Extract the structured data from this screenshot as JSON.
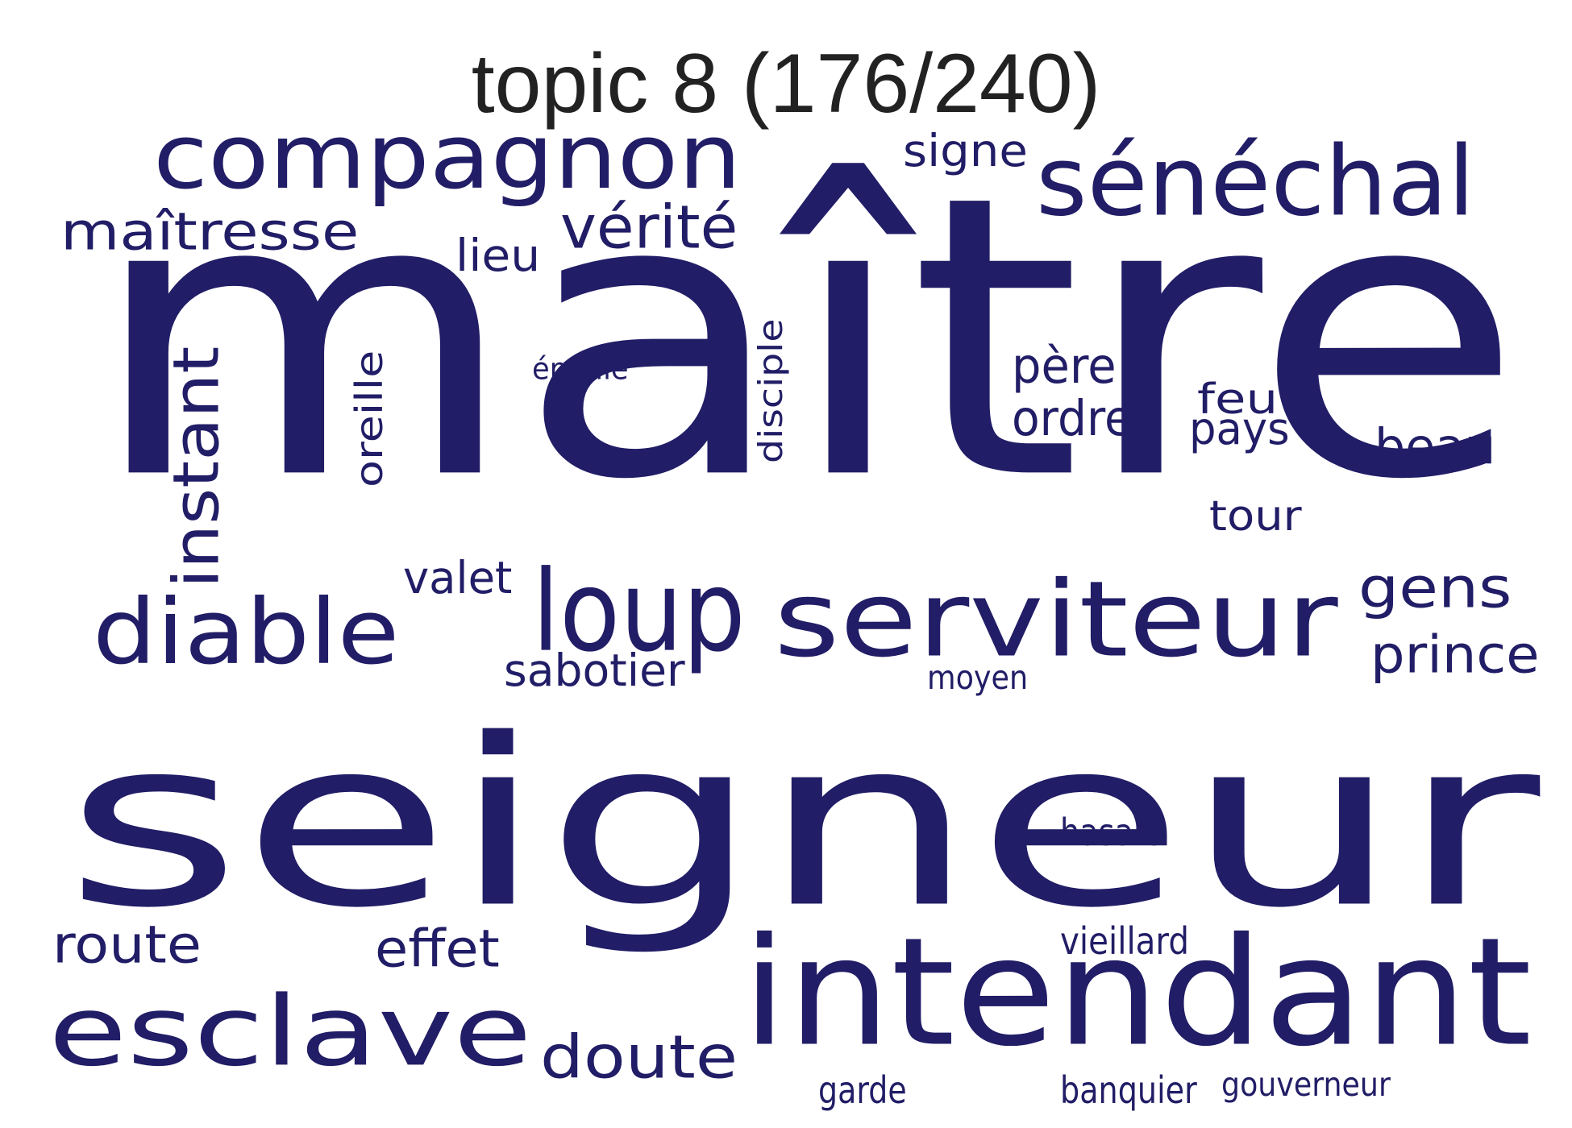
{
  "title": "topic 8 (176/240)",
  "word_color": "#211d66",
  "title_color": "#222222",
  "words": [
    {
      "text": "maître",
      "vertical": false
    },
    {
      "text": "seigneur",
      "vertical": false
    },
    {
      "text": "intendant",
      "vertical": false
    },
    {
      "text": "serviteur",
      "vertical": false
    },
    {
      "text": "compagnon",
      "vertical": false
    },
    {
      "text": "esclave",
      "vertical": false
    },
    {
      "text": "sénéchal",
      "vertical": false
    },
    {
      "text": "diable",
      "vertical": false
    },
    {
      "text": "loup",
      "vertical": false
    },
    {
      "text": "instant",
      "vertical": true
    },
    {
      "text": "maîtresse",
      "vertical": false
    },
    {
      "text": "vérité",
      "vertical": false
    },
    {
      "text": "doute",
      "vertical": false
    },
    {
      "text": "prince",
      "vertical": false
    },
    {
      "text": "gens",
      "vertical": false
    },
    {
      "text": "effet",
      "vertical": false
    },
    {
      "text": "route",
      "vertical": false
    },
    {
      "text": "père",
      "vertical": false
    },
    {
      "text": "ordre",
      "vertical": false
    },
    {
      "text": "beau",
      "vertical": false
    },
    {
      "text": "sabotier",
      "vertical": false
    },
    {
      "text": "valet",
      "vertical": false
    },
    {
      "text": "pays",
      "vertical": false
    },
    {
      "text": "feu",
      "vertical": false
    },
    {
      "text": "oreille",
      "vertical": true
    },
    {
      "text": "tour",
      "vertical": false
    },
    {
      "text": "signe",
      "vertical": false
    },
    {
      "text": "lieu",
      "vertical": false
    },
    {
      "text": "disciple",
      "vertical": true
    },
    {
      "text": "hasard",
      "vertical": false
    },
    {
      "text": "vieillard",
      "vertical": false
    },
    {
      "text": "garde",
      "vertical": false
    },
    {
      "text": "banquier",
      "vertical": false
    },
    {
      "text": "gouverneur",
      "vertical": false
    },
    {
      "text": "moyen",
      "vertical": false
    },
    {
      "text": "épaule",
      "vertical": false
    }
  ]
}
